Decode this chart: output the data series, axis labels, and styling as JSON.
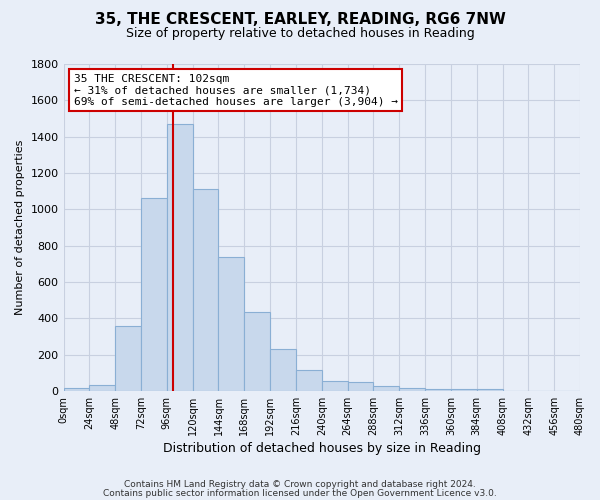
{
  "title": "35, THE CRESCENT, EARLEY, READING, RG6 7NW",
  "subtitle": "Size of property relative to detached houses in Reading",
  "xlabel": "Distribution of detached houses by size in Reading",
  "ylabel": "Number of detached properties",
  "bin_edges": [
    0,
    24,
    48,
    72,
    96,
    120,
    144,
    168,
    192,
    216,
    240,
    264,
    288,
    312,
    336,
    360,
    384,
    408,
    432,
    456,
    480
  ],
  "bar_heights": [
    15,
    30,
    355,
    1060,
    1470,
    1110,
    740,
    435,
    230,
    115,
    57,
    48,
    25,
    18,
    12,
    12,
    12,
    0,
    0,
    0
  ],
  "bar_color": "#c8d8ec",
  "bar_edge_color": "#8aafd4",
  "property_line_x": 102,
  "annotation_line1": "35 THE CRESCENT: 102sqm",
  "annotation_line2": "← 31% of detached houses are smaller (1,734)",
  "annotation_line3": "69% of semi-detached houses are larger (3,904) →",
  "annotation_box_color": "#ffffff",
  "annotation_box_edge_color": "#cc0000",
  "line_color": "#cc0000",
  "ylim": [
    0,
    1800
  ],
  "yticks": [
    0,
    200,
    400,
    600,
    800,
    1000,
    1200,
    1400,
    1600,
    1800
  ],
  "xtick_labels": [
    "0sqm",
    "24sqm",
    "48sqm",
    "72sqm",
    "96sqm",
    "120sqm",
    "144sqm",
    "168sqm",
    "192sqm",
    "216sqm",
    "240sqm",
    "264sqm",
    "288sqm",
    "312sqm",
    "336sqm",
    "360sqm",
    "384sqm",
    "408sqm",
    "432sqm",
    "456sqm",
    "480sqm"
  ],
  "footer_line1": "Contains HM Land Registry data © Crown copyright and database right 2024.",
  "footer_line2": "Contains public sector information licensed under the Open Government Licence v3.0.",
  "bg_color": "#e8eef8",
  "plot_bg_color": "#e8eef8",
  "grid_color": "#c8d0e0"
}
